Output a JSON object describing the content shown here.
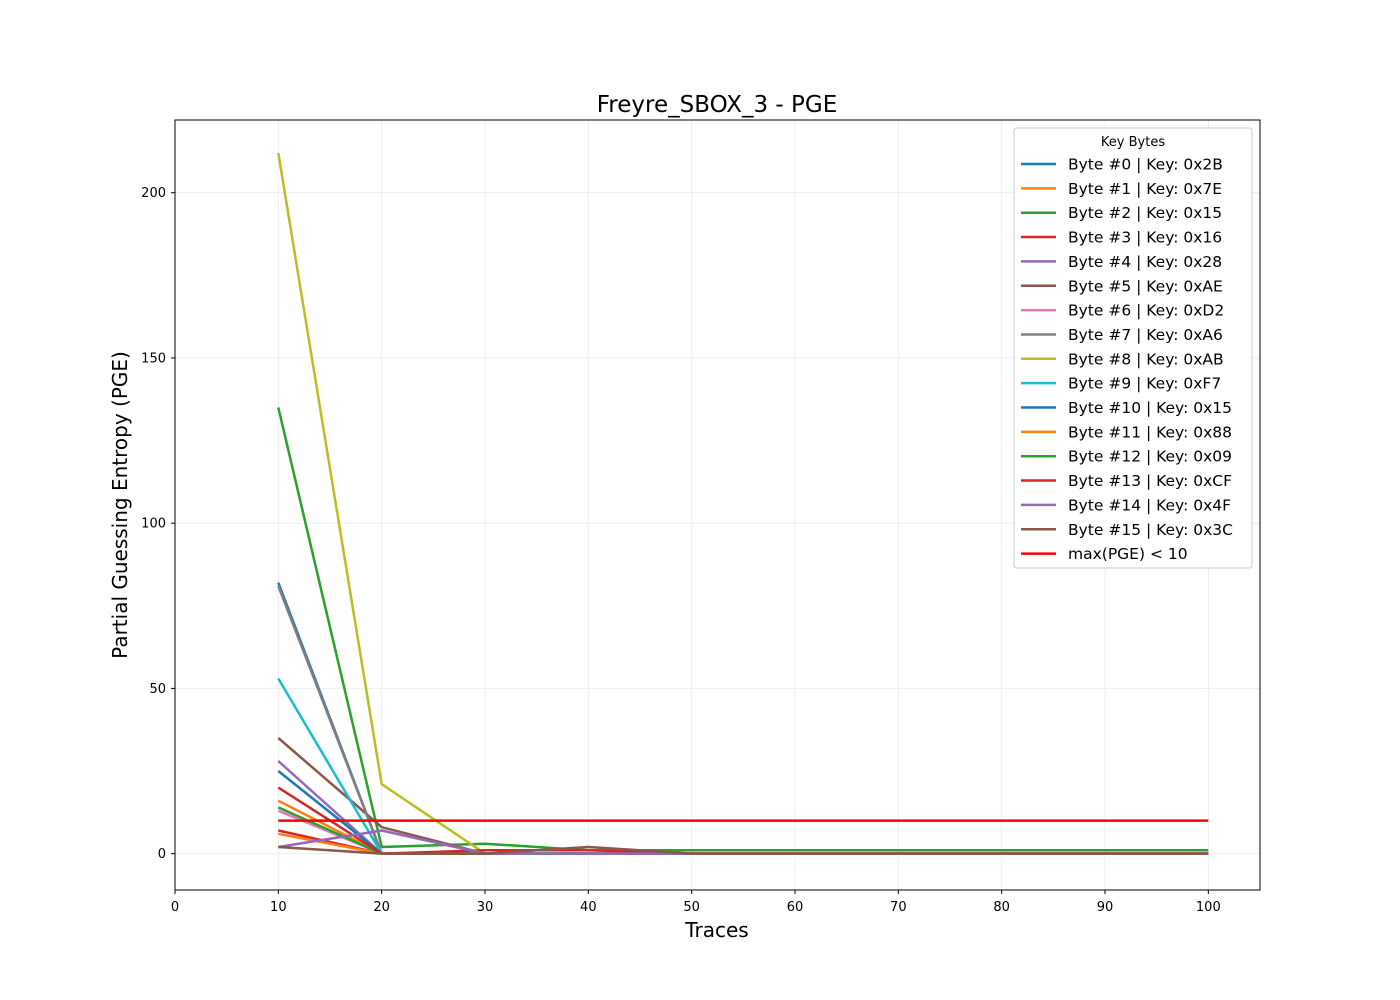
{
  "chart_data": {
    "type": "line",
    "title": "Freyre_SBOX_3 - PGE",
    "xlabel": "Traces",
    "ylabel": "Partial Guessing Entropy (PGE)",
    "xlim": [
      0,
      105
    ],
    "ylim": [
      -11,
      222
    ],
    "xticks": [
      0,
      10,
      20,
      30,
      40,
      50,
      60,
      70,
      80,
      90,
      100
    ],
    "yticks": [
      0,
      50,
      100,
      150,
      200
    ],
    "grid": true,
    "legend": {
      "title": "Key Bytes",
      "placement": "top-right"
    },
    "x": [
      10,
      20,
      30,
      40,
      50,
      60,
      70,
      80,
      90,
      100
    ],
    "series": [
      {
        "name": "Byte #0 | Key: 0x2B",
        "color": "#1f77b4",
        "values": [
          82,
          0,
          0,
          0,
          0,
          0,
          0,
          0,
          0,
          0
        ]
      },
      {
        "name": "Byte #1 | Key: 0x7E",
        "color": "#ff7f0e",
        "values": [
          16,
          0,
          0,
          0,
          0,
          0,
          0,
          0,
          0,
          0
        ]
      },
      {
        "name": "Byte #2 | Key: 0x15",
        "color": "#2ca02c",
        "values": [
          135,
          2,
          3,
          1,
          1,
          1,
          1,
          1,
          1,
          1
        ]
      },
      {
        "name": "Byte #3 | Key: 0x16",
        "color": "#d62728",
        "values": [
          7,
          0,
          0,
          0,
          0,
          0,
          0,
          0,
          0,
          0
        ]
      },
      {
        "name": "Byte #4 | Key: 0x28",
        "color": "#9467bd",
        "values": [
          28,
          0,
          0,
          0,
          0,
          0,
          0,
          0,
          0,
          0
        ]
      },
      {
        "name": "Byte #5 | Key: 0xAE",
        "color": "#8c564b",
        "values": [
          35,
          8,
          0,
          0,
          0,
          0,
          0,
          0,
          0,
          0
        ]
      },
      {
        "name": "Byte #6 | Key: 0xD2",
        "color": "#e377c2",
        "values": [
          13,
          0,
          0,
          0,
          0,
          0,
          0,
          0,
          0,
          0
        ]
      },
      {
        "name": "Byte #7 | Key: 0xA6",
        "color": "#7f7f7f",
        "values": [
          81,
          0,
          0,
          0,
          0,
          0,
          0,
          0,
          0,
          0
        ]
      },
      {
        "name": "Byte #8 | Key: 0xAB",
        "color": "#bcbd22",
        "values": [
          212,
          21,
          0,
          0,
          0,
          0,
          0,
          0,
          0,
          0
        ]
      },
      {
        "name": "Byte #9 | Key: 0xF7",
        "color": "#17becf",
        "values": [
          53,
          0,
          0,
          0,
          0,
          0,
          0,
          0,
          0,
          0
        ]
      },
      {
        "name": "Byte #10 | Key: 0x15",
        "color": "#1f77b4",
        "values": [
          25,
          0,
          0,
          0,
          0,
          0,
          0,
          0,
          0,
          0
        ]
      },
      {
        "name": "Byte #11 | Key: 0x88",
        "color": "#ff7f0e",
        "values": [
          6,
          0,
          0,
          0,
          0,
          0,
          0,
          0,
          0,
          0
        ]
      },
      {
        "name": "Byte #12 | Key: 0x09",
        "color": "#2ca02c",
        "values": [
          14,
          0,
          0,
          0,
          0,
          0,
          0,
          0,
          0,
          0
        ]
      },
      {
        "name": "Byte #13 | Key: 0xCF",
        "color": "#d62728",
        "values": [
          20,
          0,
          1,
          1,
          0,
          0,
          0,
          0,
          0,
          0
        ]
      },
      {
        "name": "Byte #14 | Key: 0x4F",
        "color": "#9467bd",
        "values": [
          2,
          7,
          0,
          0,
          0,
          0,
          0,
          0,
          0,
          0
        ]
      },
      {
        "name": "Byte #15 | Key: 0x3C",
        "color": "#8c564b",
        "values": [
          2,
          0,
          0,
          2,
          0,
          0,
          0,
          0,
          0,
          0
        ]
      },
      {
        "name": "max(PGE) < 10",
        "color": "#ff0000",
        "values": [
          10,
          10,
          10,
          10,
          10,
          10,
          10,
          10,
          10,
          10
        ]
      }
    ]
  }
}
